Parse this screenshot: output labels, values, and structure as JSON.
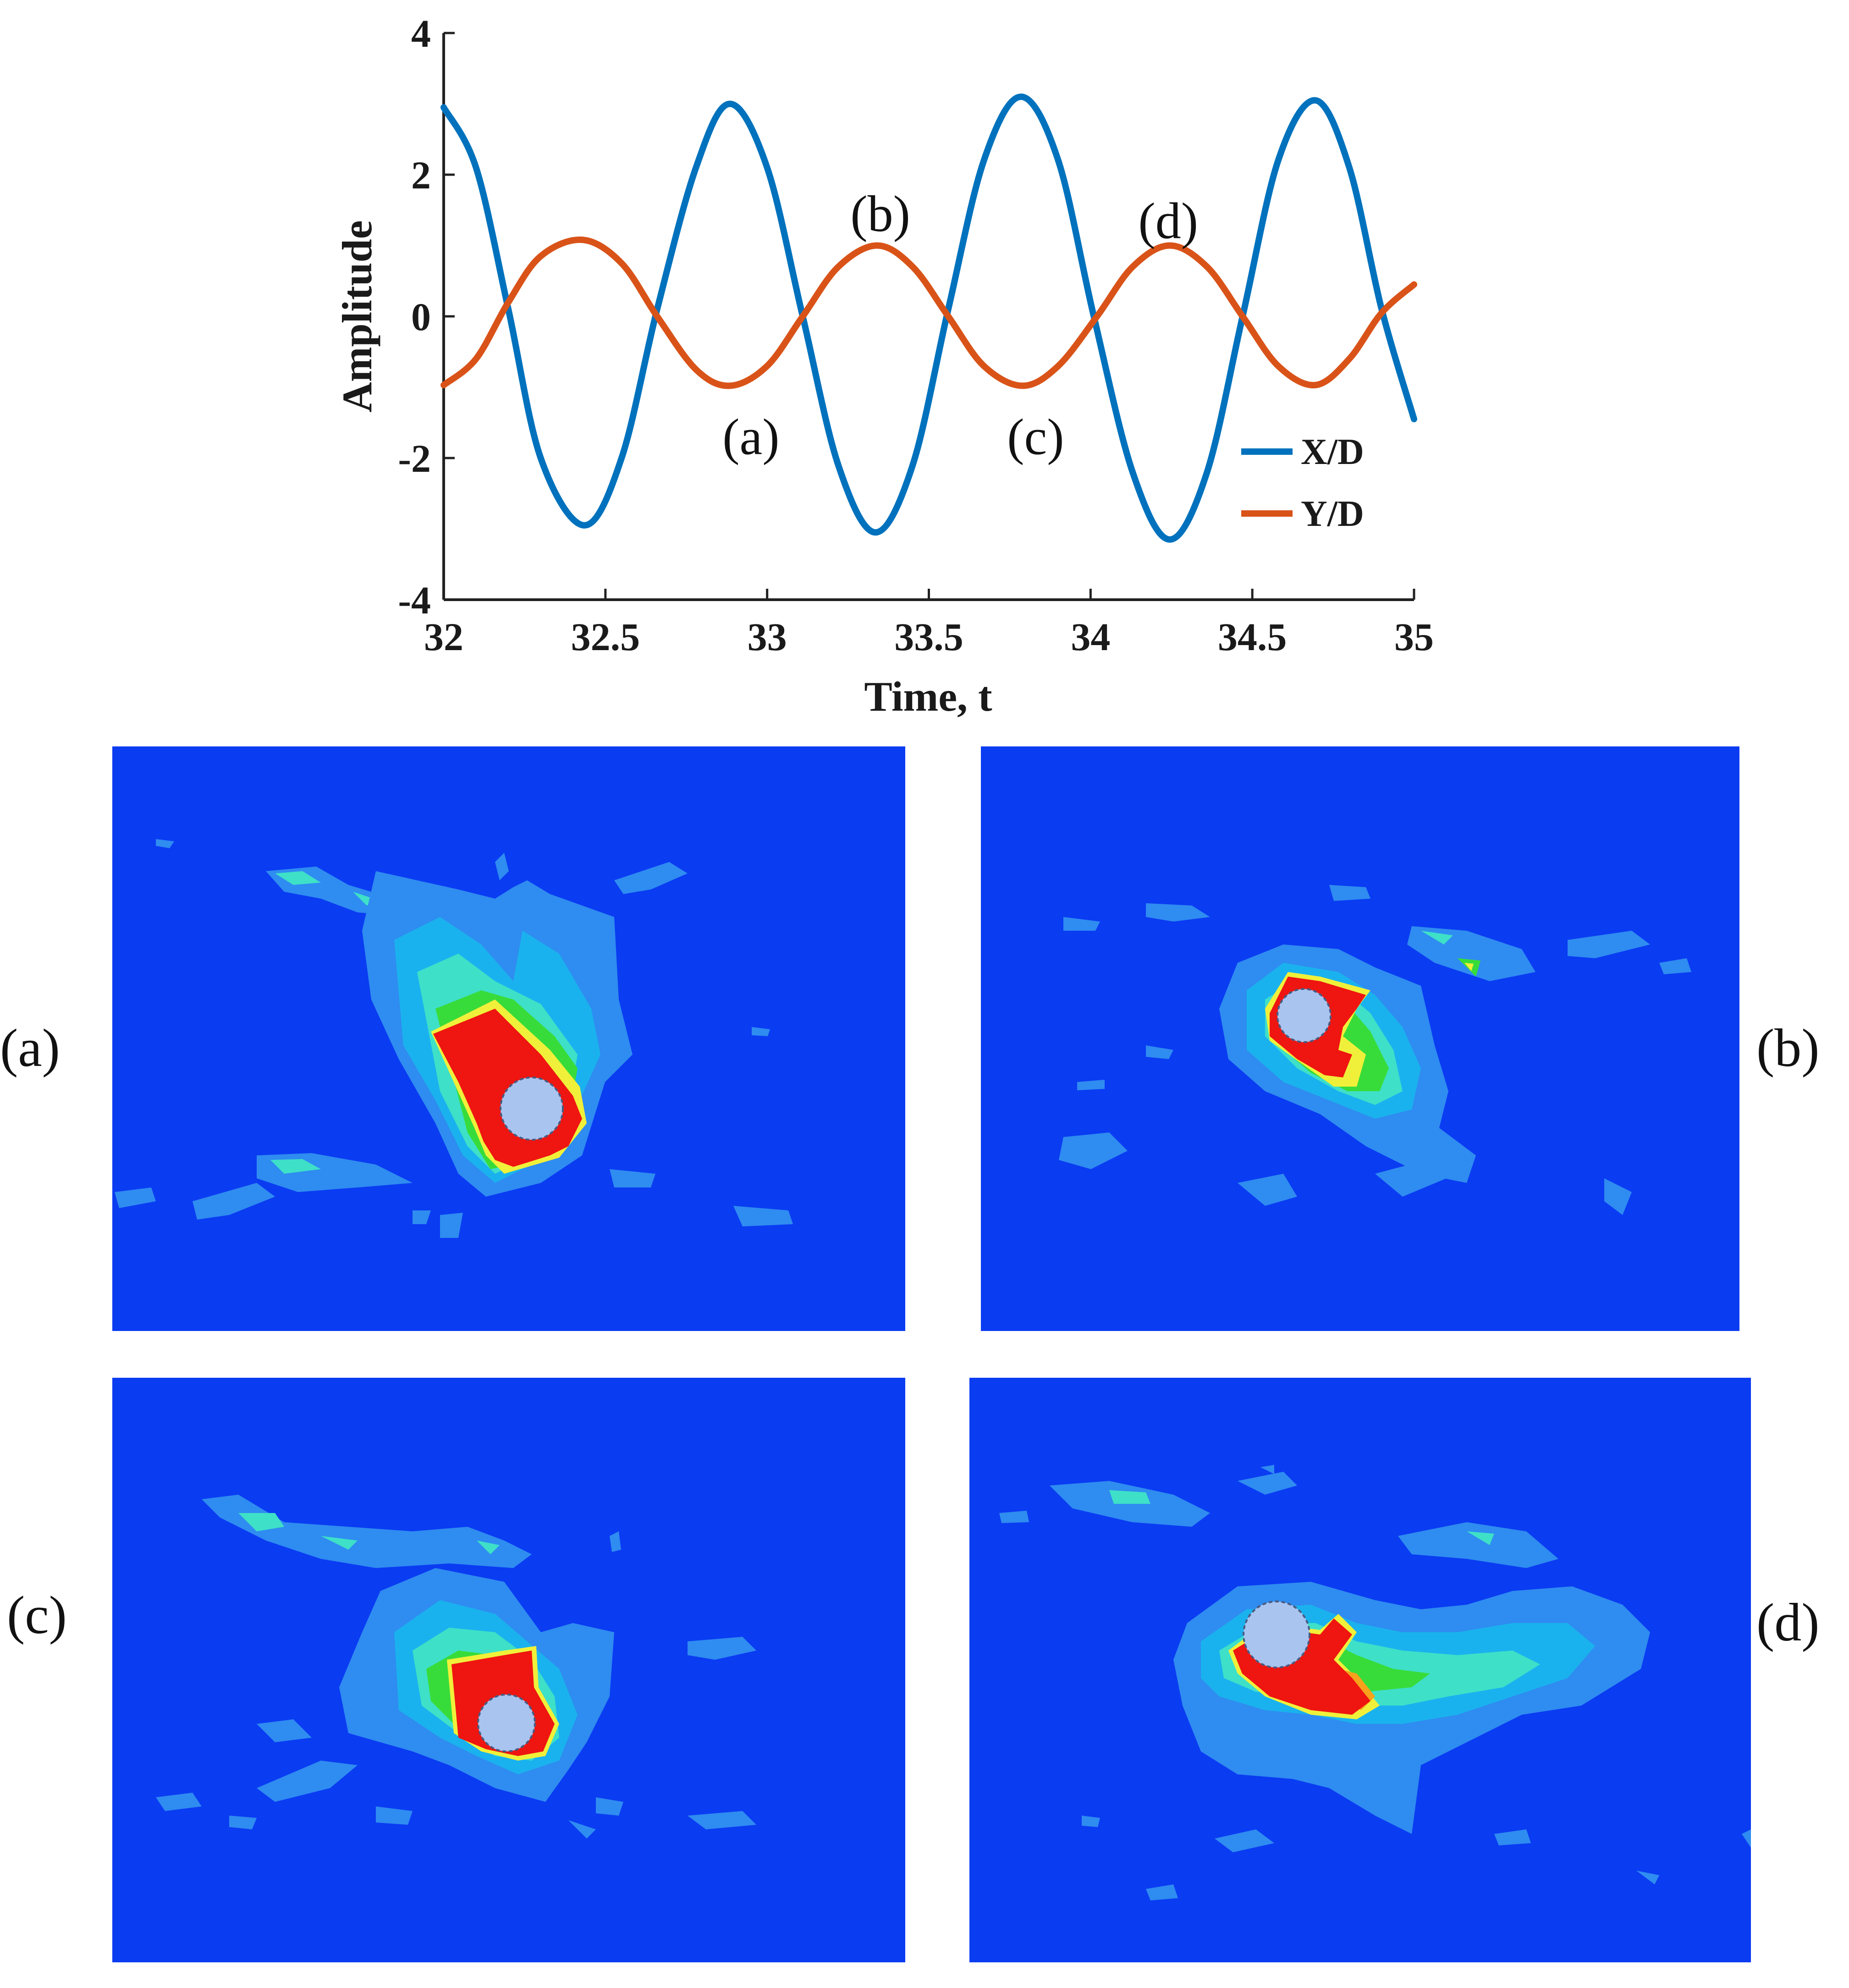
{
  "chart_data": {
    "type": "line",
    "title": "",
    "xlabel": "Time, t",
    "ylabel": "Amplitude",
    "xlim": [
      32,
      35
    ],
    "ylim": [
      -4,
      4
    ],
    "xticks": [
      "32",
      "32.5",
      "33",
      "33.5",
      "34",
      "34.5",
      "35"
    ],
    "yticks": [
      "4",
      "2",
      "0",
      "-2",
      "-4"
    ],
    "grid": false,
    "legend": "bottom-right",
    "series": [
      {
        "name": "X/D",
        "color": "#0072bd",
        "x": [
          32.0,
          32.1,
          32.2,
          32.3,
          32.435,
          32.55,
          32.66,
          32.78,
          32.885,
          33.0,
          33.11,
          33.22,
          33.335,
          33.45,
          33.56,
          33.67,
          33.785,
          33.9,
          34.01,
          34.13,
          34.245,
          34.36,
          34.47,
          34.58,
          34.695,
          34.8,
          34.9,
          35.0
        ],
        "y": [
          2.95,
          2.1,
          0.1,
          -2.0,
          -2.95,
          -2.0,
          0.1,
          2.1,
          3.0,
          2.1,
          0.0,
          -2.1,
          -3.05,
          -2.1,
          0.1,
          2.2,
          3.1,
          2.2,
          0.0,
          -2.2,
          -3.15,
          -2.2,
          0.0,
          2.2,
          3.05,
          2.1,
          0.1,
          -1.45
        ]
      },
      {
        "name": "Y/D",
        "color": "#d95319",
        "x": [
          32.0,
          32.1,
          32.2,
          32.3,
          32.43,
          32.55,
          32.66,
          32.78,
          32.885,
          33.0,
          33.11,
          33.22,
          33.34,
          33.45,
          33.56,
          33.67,
          33.79,
          33.9,
          34.02,
          34.13,
          34.245,
          34.36,
          34.47,
          34.58,
          34.695,
          34.8,
          34.9,
          35.0
        ],
        "y": [
          -0.97,
          -0.6,
          0.2,
          0.85,
          1.08,
          0.75,
          0.0,
          -0.75,
          -0.98,
          -0.7,
          0.0,
          0.7,
          1.0,
          0.7,
          0.0,
          -0.7,
          -0.98,
          -0.7,
          0.0,
          0.7,
          1.0,
          0.7,
          0.0,
          -0.7,
          -0.97,
          -0.6,
          0.05,
          0.45
        ]
      }
    ],
    "annotations": [
      {
        "text": "(a)",
        "x": 32.95,
        "y": -1.7
      },
      {
        "text": "(b)",
        "x": 33.35,
        "y": 1.45
      },
      {
        "text": "(c)",
        "x": 33.83,
        "y": -1.7
      },
      {
        "text": "(d)",
        "x": 34.24,
        "y": 1.35
      }
    ]
  },
  "panels": [
    {
      "label": "(a)"
    },
    {
      "label": "(b)"
    },
    {
      "label": "(c)"
    },
    {
      "label": "(d)"
    }
  ],
  "colors": {
    "field_background": "#0a3cf2",
    "level_1": "#2f8cf0",
    "level_2": "#1ab2ee",
    "level_3": "#3ee0c8",
    "level_4": "#38dc3a",
    "level_5": "#f0f03a",
    "level_6": "#f6a21c",
    "level_7": "#ef1510",
    "cylinder": "#a8c4ef"
  }
}
